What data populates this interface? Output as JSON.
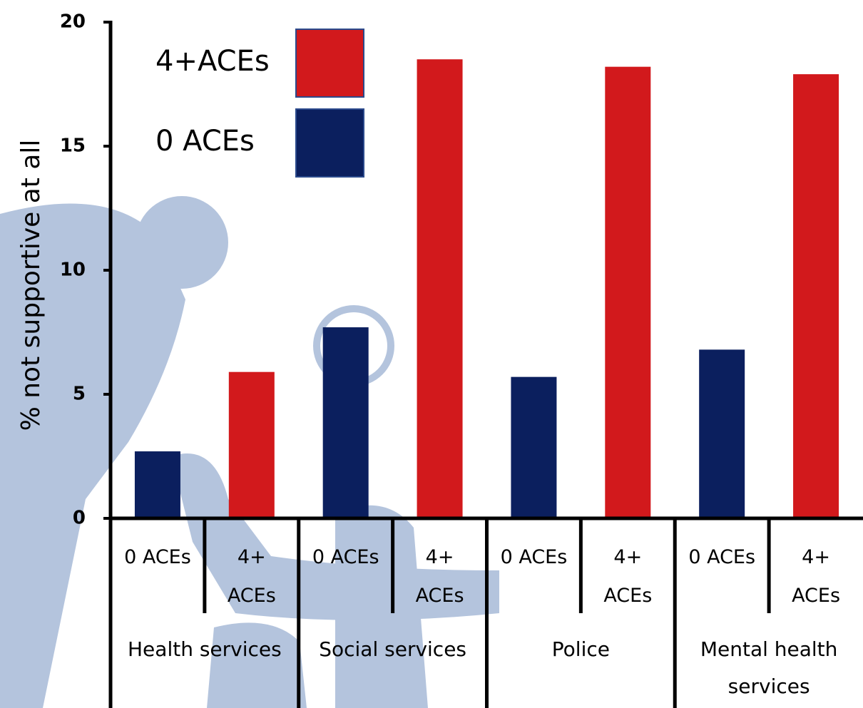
{
  "chart_data": {
    "type": "bar",
    "y_label": "% not supportive at all",
    "categories": [
      "Health services",
      "Social services",
      "Police",
      "Mental health services"
    ],
    "subcategories": [
      "0 ACEs",
      "4+ ACEs"
    ],
    "series": [
      {
        "name": "0 ACEs",
        "color": "#0b1f5e",
        "values": [
          2.7,
          7.7,
          5.7,
          6.8
        ]
      },
      {
        "name": "4+ACEs",
        "color": "#d2191c",
        "values": [
          5.9,
          18.5,
          18.2,
          17.9
        ]
      }
    ],
    "ylim": [
      0,
      20
    ],
    "yticks": [
      0,
      5,
      10,
      15,
      20
    ]
  }
}
